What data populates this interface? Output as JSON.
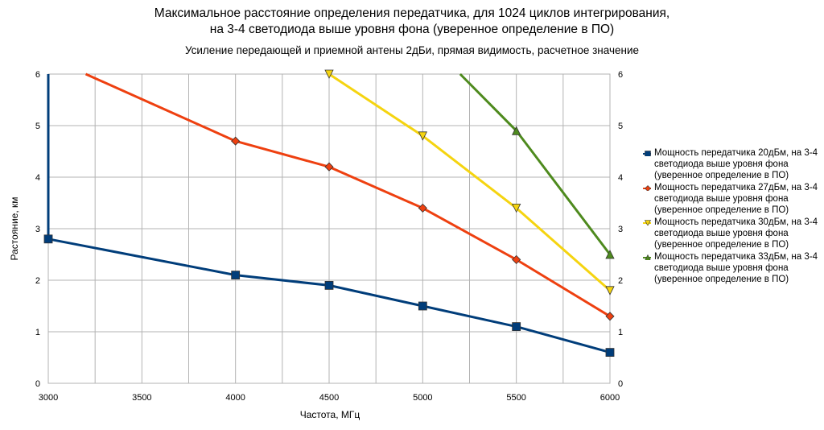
{
  "chart_data": {
    "type": "line",
    "title": "Максимальное расстояние определения передатчика, для 1024 циклов интегрирования,",
    "title_line2": "на 3-4 светодиода выше уровня фона (уверенное определение в ПО)",
    "subtitle": "Усиление передающей и приемной антены 2дБи, прямая видимость, расчетное значение",
    "xlabel": "Частота, МГц",
    "ylabel": "Растояние, км",
    "xlim": [
      3000,
      6000
    ],
    "ylim": [
      0,
      6
    ],
    "x_ticks": [
      "3000",
      "3500",
      "4000",
      "4500",
      "5000",
      "5500",
      "6000"
    ],
    "y_ticks": [
      "0",
      "1",
      "2",
      "3",
      "4",
      "5",
      "6"
    ],
    "grid": true,
    "legend_position": "right",
    "series": [
      {
        "name": "Мощность передатчика 20дБм, на 3-4 светодиода выше уровня фона (уверенное определение в ПО)",
        "name_lines": [
          "Мощность передатчика 20дБм, на 3-4",
          "светодиода выше уровня фона",
          "(уверенное определение в ПО)"
        ],
        "color": "#003d7a",
        "marker": "square",
        "points": [
          [
            3000,
            6.0
          ],
          [
            3000,
            2.8
          ],
          [
            4000,
            2.1
          ],
          [
            4500,
            1.9
          ],
          [
            5000,
            1.5
          ],
          [
            5500,
            1.1
          ],
          [
            6000,
            0.6
          ]
        ],
        "marker_points": [
          [
            3000,
            2.8
          ],
          [
            4000,
            2.1
          ],
          [
            4500,
            1.9
          ],
          [
            5000,
            1.5
          ],
          [
            5500,
            1.1
          ],
          [
            6000,
            0.6
          ]
        ]
      },
      {
        "name": "Мощность передатчика 27дБм, на 3-4 светодиода выше уровня фона (уверенное определение в ПО)",
        "name_lines": [
          "Мощность передатчика 27дБм, на 3-4",
          "светодиода выше уровня фона",
          "(уверенное определение в ПО)"
        ],
        "color": "#ee4010",
        "marker": "diamond",
        "points": [
          [
            3200,
            6.0
          ],
          [
            4000,
            4.7
          ],
          [
            4500,
            4.2
          ],
          [
            5000,
            3.4
          ],
          [
            5500,
            2.4
          ],
          [
            6000,
            1.3
          ]
        ],
        "marker_points": [
          [
            4000,
            4.7
          ],
          [
            4500,
            4.2
          ],
          [
            5000,
            3.4
          ],
          [
            5500,
            2.4
          ],
          [
            6000,
            1.3
          ]
        ]
      },
      {
        "name": "Мощность передатчика 30дБм, на 3-4 светодиода выше уровня фона (уверенное определение в ПО)",
        "name_lines": [
          "Мощность передатчика 30дБм, на 3-4",
          "светодиода выше уровня фона",
          "(уверенное определение в ПО)"
        ],
        "color": "#f5d410",
        "marker": "triangle-down",
        "points": [
          [
            4500,
            6.0
          ],
          [
            5000,
            4.8
          ],
          [
            5500,
            3.4
          ],
          [
            6000,
            1.8
          ]
        ],
        "marker_points": [
          [
            4500,
            6.0
          ],
          [
            5000,
            4.8
          ],
          [
            5500,
            3.4
          ],
          [
            6000,
            1.8
          ]
        ]
      },
      {
        "name": "Мощность передатчика 33дБм, на 3-4 светодиода выше уровня фона (уверенное определение в ПО)",
        "name_lines": [
          "Мощность передатчика 33дБм, на 3-4",
          "светодиода выше уровня фона",
          "(уверенное определение в ПО)"
        ],
        "color": "#4e8a1e",
        "marker": "triangle-up",
        "points": [
          [
            5200,
            6.0
          ],
          [
            5500,
            4.9
          ],
          [
            6000,
            2.5
          ]
        ],
        "marker_points": [
          [
            5500,
            4.9
          ],
          [
            6000,
            2.5
          ]
        ]
      }
    ]
  }
}
